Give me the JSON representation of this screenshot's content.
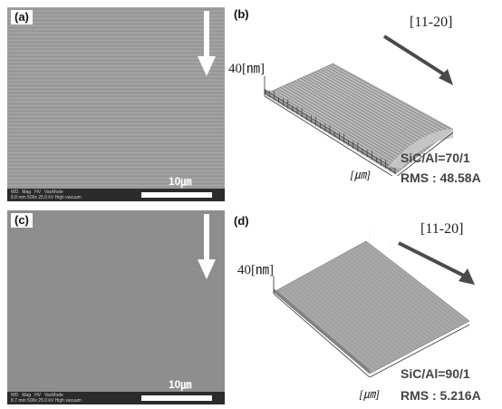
{
  "panels": [
    {
      "label": "(a)",
      "scale": "10㎛",
      "databar": {
        "headers": [
          "WD",
          "Mag",
          "HV",
          "VacMode"
        ],
        "values": "8.8 mm  500x  25.0 kV  High vacuum"
      }
    },
    {
      "label": "(b)",
      "direction": "[11-20]",
      "z_label": "40[㎚]",
      "unit": "[㎛]",
      "ratio": "SiC/Al=70/1",
      "rms": "RMS : 48.58A"
    },
    {
      "label": "(c)",
      "scale": "10㎛",
      "databar": {
        "headers": [
          "WD",
          "Mag",
          "HV",
          "VacMode"
        ],
        "values": "8.7 mm  500x  25.0 kV  High vacuum"
      }
    },
    {
      "label": "(d)",
      "direction": "[11-20]",
      "z_label": "40[㎚]",
      "unit": "[㎛]",
      "ratio": "SiC/Al=90/1",
      "rms": "RMS : 5.216A"
    }
  ],
  "colors": {
    "arrow_dark": "#4a4a4a",
    "arrow_light": "#ffffff"
  }
}
